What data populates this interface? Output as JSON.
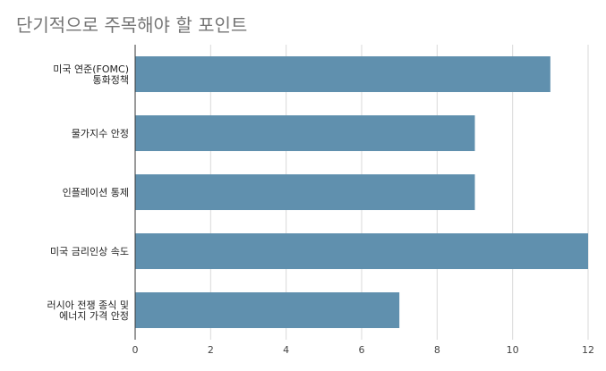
{
  "chart_data": {
    "type": "bar",
    "orientation": "horizontal",
    "title": "단기적으로 주목해야 할 포인트",
    "categories": [
      [
        "미국 연준(FOMC)",
        "통화정책"
      ],
      [
        "물가지수 안정"
      ],
      [
        "인플레이션 통제"
      ],
      [
        "미국 금리인상 속도"
      ],
      [
        "러시아 전쟁 종식 및",
        "에너지 가격 안정"
      ]
    ],
    "values": [
      11,
      9,
      9,
      12,
      7
    ],
    "xlim": [
      0,
      12
    ],
    "x_ticks": [
      "0",
      "2",
      "4",
      "6",
      "8",
      "10",
      "12"
    ],
    "xlabel": "",
    "ylabel": "",
    "grid": "vertical",
    "bar_color": "#6090AE",
    "legend": "none"
  }
}
